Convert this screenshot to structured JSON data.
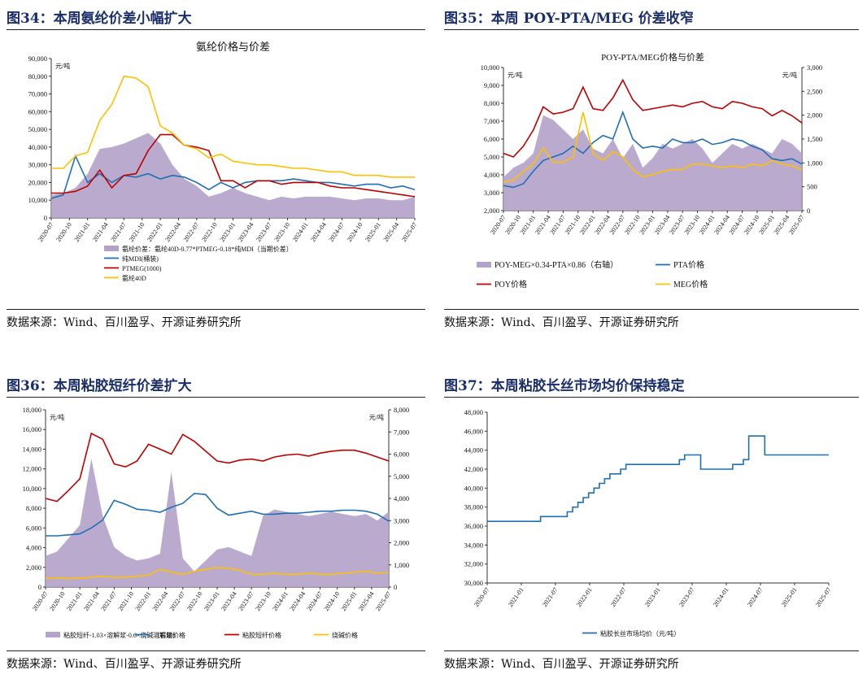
{
  "panels": [
    {
      "figure_title": "图34：本周氨纶价差小幅扩大",
      "source": "数据来源：Wind、百川盈孚、开源证券研究所",
      "chart_data": {
        "type": "area",
        "title": "氨纶价格与价差",
        "unit_left": "元/吨",
        "unit_right": "",
        "x_ticks": [
          "2020-07",
          "2020-10",
          "2021-01",
          "2021-04",
          "2021-07",
          "2021-10",
          "2022-01",
          "2022-04",
          "2022-07",
          "2022-10",
          "2023-01",
          "2023-04",
          "2023-07",
          "2023-10",
          "2024-01",
          "2024-04",
          "2024-07",
          "2024-10",
          "2025-01",
          "2025-04",
          "2025-07"
        ],
        "ylim": [
          0,
          90000
        ],
        "y_ticks": [
          "0",
          "10,000",
          "20,000",
          "30,000",
          "40,000",
          "50,000",
          "60,000",
          "70,000",
          "80,000",
          "90,000"
        ],
        "series": [
          {
            "name": "氨纶价差：氨纶40D-0.77*PTMEG-0.18*纯MDI（当期价差）",
            "kind": "area",
            "axis": "left",
            "color": "#b3a2c9",
            "values": [
              13000,
              14000,
              17000,
              25000,
              39000,
              40000,
              42000,
              45000,
              48000,
              42000,
              30000,
              22000,
              18000,
              12000,
              14000,
              17000,
              14000,
              12000,
              10000,
              12000,
              11000,
              12000,
              12000,
              12000,
              11000,
              10000,
              11000,
              11000,
              10000,
              10000,
              12000
            ]
          },
          {
            "name": "纯MDI(桶装)",
            "kind": "line",
            "axis": "left",
            "color": "#1f6fb5",
            "values": [
              11000,
              13000,
              35000,
              20000,
              25000,
              20000,
              24000,
              23000,
              25000,
              22000,
              24000,
              23000,
              20000,
              16000,
              20000,
              17000,
              20000,
              21000,
              21000,
              21000,
              22000,
              21000,
              20000,
              20000,
              19000,
              18000,
              19000,
              19000,
              17000,
              18000,
              16000
            ]
          },
          {
            "name": "PTMEG(1000)",
            "kind": "line",
            "axis": "left",
            "color": "#c00000",
            "values": [
              14000,
              14000,
              15000,
              18000,
              27000,
              17000,
              24000,
              25000,
              38000,
              47000,
              47000,
              41000,
              40000,
              38000,
              21000,
              21000,
              17000,
              21000,
              21000,
              19000,
              20000,
              20000,
              20000,
              18000,
              17000,
              17000,
              16000,
              15000,
              14000,
              13000,
              12000
            ]
          },
          {
            "name": "氨纶40D",
            "kind": "line",
            "axis": "left",
            "color": "#ffc000",
            "values": [
              28000,
              28000,
              35000,
              37000,
              55000,
              64000,
              80000,
              79000,
              74000,
              52000,
              48000,
              41000,
              39000,
              34000,
              36000,
              32000,
              31000,
              30000,
              30000,
              29000,
              28000,
              28000,
              27000,
              26000,
              26000,
              24000,
              24000,
              24000,
              23000,
              23000,
              23000
            ]
          }
        ]
      }
    },
    {
      "figure_title": "图35：本周 POY-PTA/MEG 价差收窄",
      "source": "数据来源：Wind、百川盈孚、开源证券研究所",
      "chart_data": {
        "type": "area",
        "title": "POY-PTA/MEG价格与价差",
        "unit_left": "元/吨",
        "unit_right": "元/吨",
        "x_ticks": [
          "2020-07",
          "2020-10",
          "2021-01",
          "2021-04",
          "2021-07",
          "2021-10",
          "2022-01",
          "2022-04",
          "2022-07",
          "2022-10",
          "2023-01",
          "2023-04",
          "2023-07",
          "2023-10",
          "2024-01",
          "2024-04",
          "2024-07",
          "2024-10",
          "2025-01",
          "2025-04",
          "2025-07"
        ],
        "ylim": [
          2000,
          10000
        ],
        "y_ticks": [
          "2,000",
          "3,000",
          "4,000",
          "5,000",
          "6,000",
          "7,000",
          "8,000",
          "9,000",
          "10,000"
        ],
        "ylim_right": [
          0,
          3000
        ],
        "y_ticks_right": [
          "0",
          "500",
          "1,000",
          "1,500",
          "2,000",
          "2,500",
          "3,000"
        ],
        "series": [
          {
            "name": "POY-MEG×0.34-PTA×0.86（右轴）",
            "kind": "area",
            "axis": "right",
            "color": "#b3a2c9",
            "values": [
              700,
              900,
              1000,
              1200,
              2000,
              1900,
              1700,
              1500,
              1700,
              1300,
              1200,
              1500,
              1100,
              1400,
              900,
              1100,
              1400,
              1300,
              1400,
              1500,
              1300,
              1000,
              1200,
              1400,
              1300,
              1400,
              1300,
              1200,
              1500,
              1400,
              1200
            ]
          },
          {
            "name": "PTA价格",
            "kind": "line",
            "axis": "left",
            "color": "#1f6fb5",
            "values": [
              3400,
              3300,
              3500,
              4200,
              4800,
              5000,
              5200,
              5600,
              5200,
              5800,
              6200,
              6000,
              7500,
              6000,
              5500,
              5600,
              5500,
              6000,
              5800,
              5800,
              6000,
              5700,
              5800,
              6000,
              5900,
              5600,
              5400,
              4900,
              4800,
              4900,
              4600
            ]
          },
          {
            "name": "POY价格",
            "kind": "line",
            "axis": "left",
            "color": "#c00000",
            "values": [
              5200,
              5000,
              5600,
              6500,
              7800,
              7400,
              7500,
              7700,
              8900,
              7700,
              7600,
              8300,
              9300,
              8200,
              7600,
              7700,
              7800,
              7900,
              7800,
              8000,
              8100,
              7800,
              7700,
              8100,
              8000,
              7800,
              7700,
              7300,
              7600,
              7300,
              6900
            ]
          },
          {
            "name": "MEG价格",
            "kind": "line",
            "axis": "left",
            "color": "#ffc000",
            "values": [
              3600,
              3700,
              4200,
              4600,
              5500,
              4700,
              4700,
              5000,
              7500,
              5200,
              4800,
              5300,
              5000,
              4300,
              3900,
              4000,
              4200,
              4300,
              4300,
              4600,
              4600,
              4500,
              4400,
              4500,
              4400,
              4600,
              4500,
              4800,
              4600,
              4500,
              4300
            ]
          }
        ]
      }
    },
    {
      "figure_title": "图36：本周粘胶短纤价差扩大",
      "source": "数据来源：Wind、百川盈孚、开源证券研究所",
      "chart_data": {
        "type": "area",
        "title": "",
        "unit_left": "元/吨",
        "unit_right": "元/吨",
        "x_ticks": [
          "2020-07",
          "2020-10",
          "2021-01",
          "2021-04",
          "2021-07",
          "2021-10",
          "2022-01",
          "2022-04",
          "2022-07",
          "2022-10",
          "2023-01",
          "2023-04",
          "2023-07",
          "2023-10",
          "2024-01",
          "2024-04",
          "2024-07",
          "2024-10",
          "2025-01",
          "2025-04",
          "2025-07"
        ],
        "ylim": [
          0,
          18000
        ],
        "y_ticks": [
          "0",
          "2,000",
          "4,000",
          "6,000",
          "8,000",
          "10,000",
          "12,000",
          "14,000",
          "16,000",
          "18,000"
        ],
        "ylim_right": [
          0,
          8000
        ],
        "y_ticks_right": [
          "0",
          "1,000",
          "2,000",
          "3,000",
          "4,000",
          "5,000",
          "6,000",
          "7,000",
          "8,000"
        ],
        "series": [
          {
            "name": "粘胶短纤-1.03×溶解浆-0.6×烧碱（右轴）",
            "kind": "area",
            "axis": "right",
            "color": "#b3a2c9",
            "values": [
              1400,
              1600,
              2200,
              2800,
              5800,
              3200,
              1800,
              1400,
              1200,
              1300,
              1500,
              5200,
              1300,
              700,
              1200,
              1700,
              1800,
              1600,
              1400,
              3200,
              3500,
              3400,
              3300,
              3200,
              3300,
              3400,
              3300,
              3200,
              3300,
              3000,
              3400
            ]
          },
          {
            "name": "溶解浆价格",
            "kind": "line",
            "axis": "left",
            "color": "#1f6fb5",
            "values": [
              5200,
              5200,
              5300,
              5400,
              6000,
              6800,
              8800,
              8400,
              7900,
              7800,
              7600,
              8100,
              8500,
              9500,
              9400,
              8000,
              7300,
              7500,
              7700,
              7400,
              7400,
              7500,
              7500,
              7600,
              7700,
              7700,
              7800,
              7800,
              7700,
              7400,
              6700
            ]
          },
          {
            "name": "粘胶短纤价格",
            "kind": "line",
            "axis": "left",
            "color": "#c00000",
            "values": [
              9000,
              8700,
              9800,
              11000,
              15600,
              15000,
              12500,
              12200,
              12800,
              14500,
              14000,
              13500,
              15500,
              14800,
              13800,
              12800,
              12600,
              12900,
              13000,
              12800,
              13200,
              13400,
              13500,
              13300,
              13600,
              13800,
              13900,
              13900,
              13600,
              13200,
              12800
            ]
          },
          {
            "name": "烧碱价格",
            "kind": "line",
            "axis": "left",
            "color": "#ffc000",
            "values": [
              900,
              900,
              850,
              900,
              1000,
              1100,
              1000,
              1000,
              1100,
              1200,
              1800,
              1500,
              1300,
              1600,
              1800,
              2000,
              1900,
              1700,
              1300,
              1300,
              1400,
              1300,
              1300,
              1400,
              1300,
              1300,
              1400,
              1500,
              1600,
              1400,
              1500
            ]
          }
        ]
      }
    },
    {
      "figure_title": "图37：本周粘胶长丝市场均价保持稳定",
      "source": "数据来源：Wind、百川盈孚、开源证券研究所",
      "chart_data": {
        "type": "line",
        "title": "",
        "unit_left": "",
        "unit_right": "",
        "x_ticks": [
          "2020-07",
          "2021-01",
          "2021-07",
          "2022-01",
          "2022-07",
          "2023-01",
          "2023-07",
          "2024-01",
          "2024-07",
          "2025-01",
          "2025-07"
        ],
        "ylim": [
          30000,
          48000
        ],
        "y_ticks": [
          "30,000",
          "32,000",
          "34,000",
          "36,000",
          "38,000",
          "40,000",
          "42,000",
          "44,000",
          "46,000",
          "48,000"
        ],
        "series": [
          {
            "name": "粘胶长丝市场均价（元/吨）",
            "kind": "step",
            "axis": "left",
            "color": "#1f6fb5",
            "values": [
              36500,
              36500,
              36500,
              36500,
              36500,
              36500,
              36500,
              36500,
              36500,
              36500,
              37000,
              37000,
              37000,
              37000,
              37000,
              37500,
              38000,
              38500,
              39000,
              39500,
              40000,
              40500,
              41000,
              41500,
              41500,
              42000,
              42500,
              42500,
              42500,
              42500,
              42500,
              42500,
              42500,
              42500,
              42500,
              42500,
              43000,
              43500,
              43500,
              43500,
              42000,
              42000,
              42000,
              42000,
              42000,
              42000,
              42500,
              42500,
              43000,
              45500,
              45500,
              45500,
              43500,
              43500,
              43500,
              43500,
              43500,
              43500,
              43500,
              43500,
              43500,
              43500,
              43500,
              43500,
              43500
            ]
          }
        ]
      }
    }
  ]
}
